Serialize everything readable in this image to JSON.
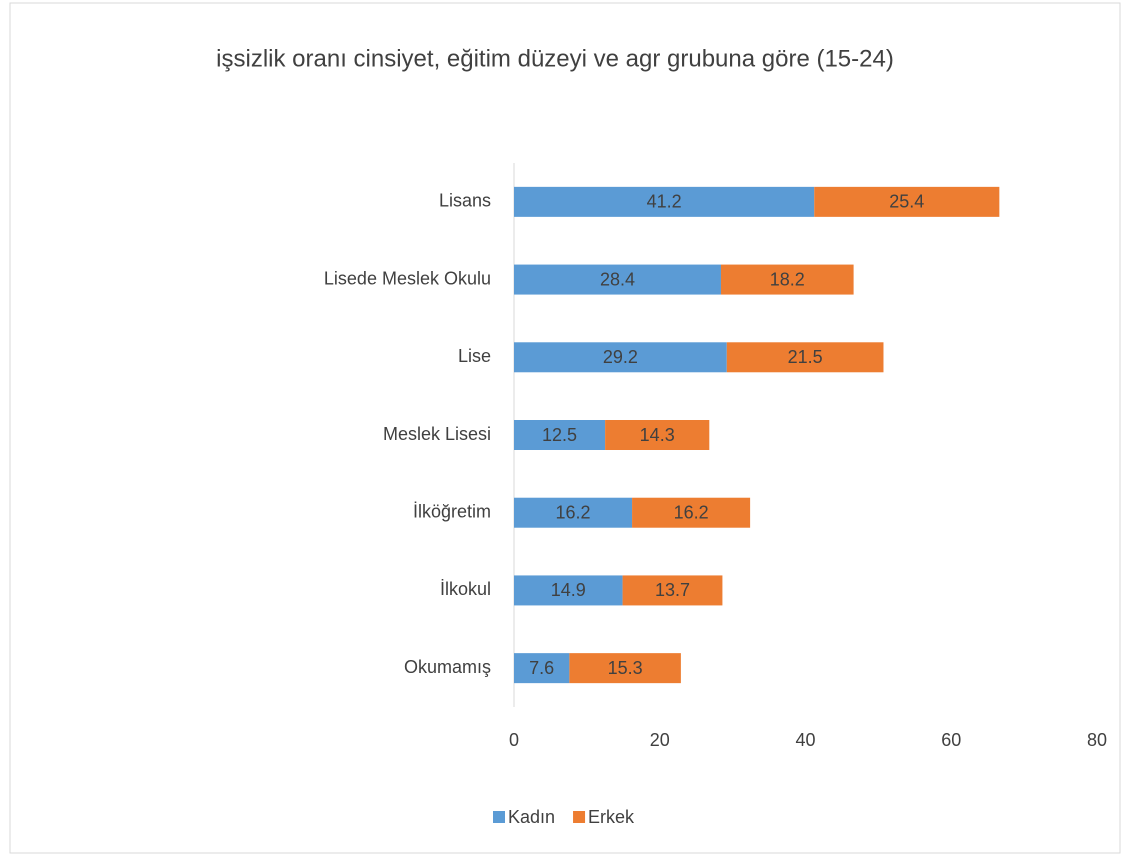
{
  "chart_data": {
    "type": "stacked_bar_horizontal",
    "title": "işsizlik oranı cinsiyet, eğitim düzeyi ve agr grubuna göre (15-24)",
    "categories": [
      "Lisans",
      "Lisede Meslek Okulu",
      "Lise",
      "Meslek Lisesi",
      "İlköğretim",
      "İlkokul",
      "Okumamış"
    ],
    "series": [
      {
        "name": "Kadın",
        "color": "#5b9bd5",
        "values": [
          41.2,
          28.4,
          29.2,
          12.5,
          16.2,
          14.9,
          7.6
        ]
      },
      {
        "name": "Erkek",
        "color": "#ed7d31",
        "values": [
          25.4,
          18.2,
          21.5,
          14.3,
          16.2,
          13.7,
          15.3
        ]
      }
    ],
    "xlim": [
      0,
      80
    ],
    "xticks": [
      0,
      20,
      40,
      60,
      80
    ],
    "grid": false,
    "legend": "bottom"
  }
}
